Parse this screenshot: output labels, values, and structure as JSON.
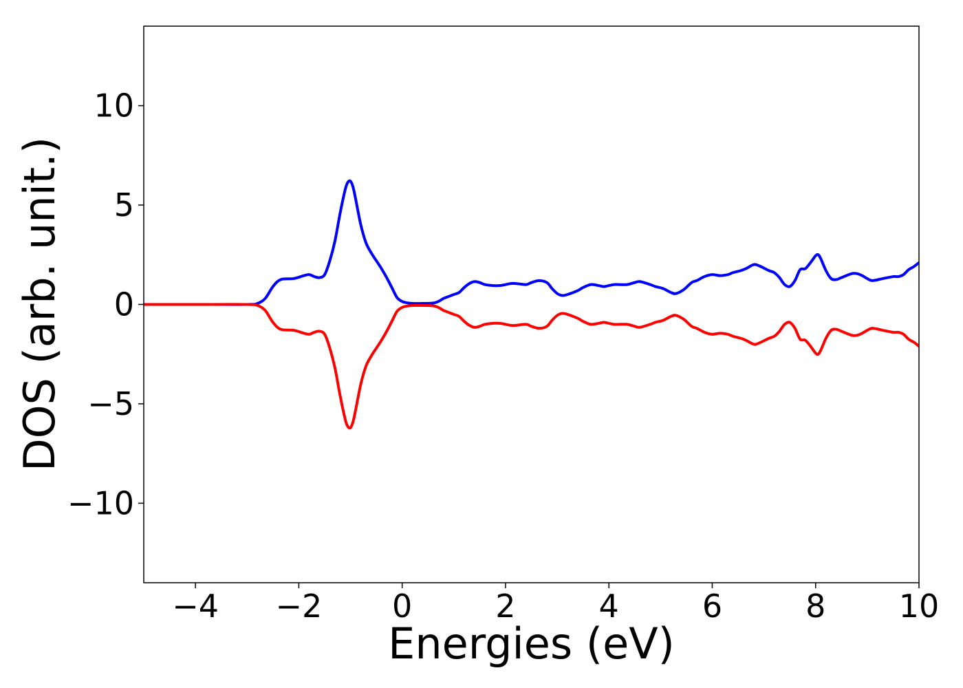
{
  "chart_data": {
    "type": "line",
    "title": "",
    "xlabel": "Energies (eV)",
    "ylabel": "DOS (arb. unit.)",
    "xlim": [
      -5,
      10
    ],
    "ylim": [
      -14,
      14
    ],
    "grid": false,
    "legend": "none",
    "xticks": [
      -4,
      -2,
      0,
      2,
      4,
      6,
      8,
      10
    ],
    "xtick_labels": [
      "−4",
      "−2",
      "0",
      "2",
      "4",
      "6",
      "8",
      "10"
    ],
    "yticks": [
      -10,
      -5,
      0,
      5,
      10
    ],
    "ytick_labels": [
      "−10",
      "−5",
      "0",
      "5",
      "10"
    ],
    "series": [
      {
        "color": "#0000ff",
        "x": [
          -5.0,
          -4.0,
          -3.0,
          -2.8,
          -2.65,
          -2.5,
          -2.35,
          -2.1,
          -1.9,
          -1.8,
          -1.7,
          -1.6,
          -1.5,
          -1.4,
          -1.3,
          -1.2,
          -1.1,
          -1.05,
          -1.0,
          -0.95,
          -0.9,
          -0.8,
          -0.7,
          -0.6,
          -0.5,
          -0.4,
          -0.3,
          -0.2,
          -0.1,
          0.0,
          0.1,
          0.2,
          0.4,
          0.6,
          0.7,
          0.8,
          0.9,
          1.0,
          1.1,
          1.2,
          1.3,
          1.4,
          1.5,
          1.6,
          1.75,
          1.9,
          2.1,
          2.2,
          2.4,
          2.5,
          2.65,
          2.8,
          2.9,
          3.0,
          3.1,
          3.2,
          3.4,
          3.5,
          3.65,
          3.8,
          3.9,
          4.0,
          4.1,
          4.2,
          4.35,
          4.5,
          4.6,
          4.8,
          4.9,
          5.05,
          5.2,
          5.3,
          5.45,
          5.6,
          5.7,
          5.85,
          6.0,
          6.15,
          6.3,
          6.4,
          6.55,
          6.65,
          6.8,
          6.9,
          7.1,
          7.2,
          7.3,
          7.4,
          7.5,
          7.6,
          7.7,
          7.8,
          7.9,
          8.0,
          8.05,
          8.1,
          8.2,
          8.3,
          8.4,
          8.5,
          8.7,
          8.8,
          8.9,
          9.0,
          9.1,
          9.3,
          9.5,
          9.6,
          9.7,
          9.8,
          9.9,
          10.0
        ],
        "values": [
          0,
          0,
          0,
          0.05,
          0.3,
          0.9,
          1.25,
          1.3,
          1.45,
          1.5,
          1.4,
          1.35,
          1.5,
          2.2,
          3.2,
          4.6,
          5.8,
          6.15,
          6.2,
          5.9,
          5.3,
          4.0,
          3.1,
          2.6,
          2.2,
          1.8,
          1.35,
          0.85,
          0.35,
          0.15,
          0.08,
          0.05,
          0.05,
          0.07,
          0.15,
          0.3,
          0.4,
          0.5,
          0.6,
          0.85,
          1.05,
          1.15,
          1.1,
          1.0,
          0.95,
          0.95,
          1.05,
          1.05,
          1.0,
          1.1,
          1.2,
          1.1,
          0.8,
          0.55,
          0.45,
          0.5,
          0.7,
          0.85,
          1.0,
          0.95,
          0.9,
          0.95,
          1.0,
          1.0,
          1.0,
          1.1,
          1.15,
          1.0,
          0.9,
          0.8,
          0.6,
          0.55,
          0.75,
          1.1,
          1.2,
          1.4,
          1.5,
          1.45,
          1.5,
          1.6,
          1.7,
          1.8,
          2.0,
          1.95,
          1.7,
          1.6,
          1.35,
          1.0,
          0.9,
          1.2,
          1.75,
          1.8,
          2.1,
          2.45,
          2.5,
          2.3,
          1.7,
          1.3,
          1.25,
          1.35,
          1.55,
          1.55,
          1.45,
          1.3,
          1.2,
          1.3,
          1.4,
          1.4,
          1.5,
          1.75,
          1.9,
          2.1
        ]
      },
      {
        "color": "#ff0000",
        "x": [
          -5.0,
          -4.0,
          -3.0,
          -2.8,
          -2.65,
          -2.5,
          -2.35,
          -2.1,
          -1.9,
          -1.8,
          -1.7,
          -1.6,
          -1.5,
          -1.4,
          -1.3,
          -1.2,
          -1.1,
          -1.05,
          -1.0,
          -0.95,
          -0.9,
          -0.8,
          -0.7,
          -0.6,
          -0.5,
          -0.4,
          -0.3,
          -0.2,
          -0.1,
          0.0,
          0.1,
          0.2,
          0.4,
          0.6,
          0.7,
          0.8,
          0.9,
          1.0,
          1.1,
          1.2,
          1.3,
          1.4,
          1.5,
          1.6,
          1.75,
          1.9,
          2.1,
          2.2,
          2.4,
          2.5,
          2.65,
          2.8,
          2.9,
          3.0,
          3.1,
          3.2,
          3.4,
          3.5,
          3.65,
          3.8,
          3.9,
          4.0,
          4.1,
          4.2,
          4.35,
          4.5,
          4.6,
          4.8,
          4.9,
          5.05,
          5.2,
          5.3,
          5.45,
          5.6,
          5.7,
          5.85,
          6.0,
          6.15,
          6.3,
          6.4,
          6.55,
          6.65,
          6.8,
          6.9,
          7.1,
          7.2,
          7.3,
          7.4,
          7.5,
          7.6,
          7.7,
          7.8,
          7.9,
          8.0,
          8.05,
          8.1,
          8.2,
          8.3,
          8.4,
          8.5,
          8.7,
          8.8,
          8.9,
          9.0,
          9.1,
          9.3,
          9.5,
          9.6,
          9.7,
          9.8,
          9.9,
          10.0
        ],
        "values": [
          0,
          0,
          0,
          -0.05,
          -0.3,
          -0.9,
          -1.25,
          -1.3,
          -1.45,
          -1.5,
          -1.4,
          -1.35,
          -1.5,
          -2.2,
          -3.2,
          -4.6,
          -5.8,
          -6.15,
          -6.2,
          -5.9,
          -5.3,
          -4.0,
          -3.1,
          -2.6,
          -2.2,
          -1.8,
          -1.35,
          -0.85,
          -0.35,
          -0.15,
          -0.08,
          -0.05,
          -0.05,
          -0.07,
          -0.15,
          -0.3,
          -0.4,
          -0.5,
          -0.6,
          -0.85,
          -1.05,
          -1.15,
          -1.1,
          -1.0,
          -0.95,
          -0.95,
          -1.05,
          -1.05,
          -1.0,
          -1.1,
          -1.2,
          -1.1,
          -0.8,
          -0.55,
          -0.45,
          -0.5,
          -0.7,
          -0.85,
          -1.0,
          -0.95,
          -0.9,
          -0.95,
          -1.0,
          -1.0,
          -1.0,
          -1.1,
          -1.15,
          -1.0,
          -0.9,
          -0.8,
          -0.6,
          -0.55,
          -0.75,
          -1.1,
          -1.2,
          -1.4,
          -1.5,
          -1.45,
          -1.5,
          -1.6,
          -1.7,
          -1.8,
          -2.0,
          -1.95,
          -1.7,
          -1.6,
          -1.35,
          -1.0,
          -0.9,
          -1.2,
          -1.75,
          -1.8,
          -2.1,
          -2.45,
          -2.5,
          -2.3,
          -1.7,
          -1.3,
          -1.25,
          -1.35,
          -1.55,
          -1.55,
          -1.45,
          -1.3,
          -1.2,
          -1.3,
          -1.4,
          -1.4,
          -1.5,
          -1.75,
          -1.9,
          -2.1
        ]
      }
    ]
  }
}
